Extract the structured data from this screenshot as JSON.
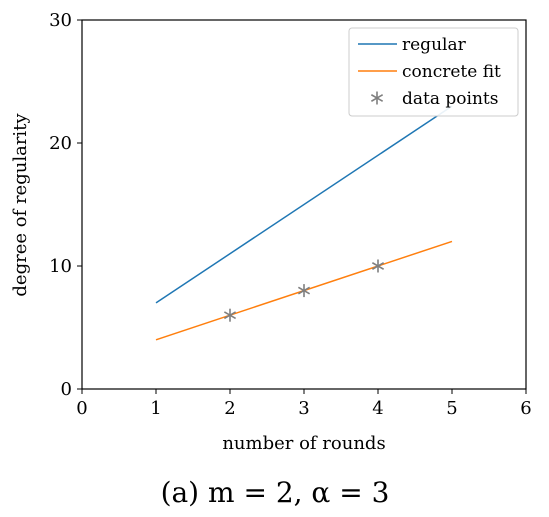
{
  "caption": "(a) m = 2, α = 3",
  "chart_data": {
    "type": "line",
    "title": "",
    "xlabel": "number of rounds",
    "ylabel": "degree of regularity",
    "xlim": [
      0,
      6
    ],
    "ylim": [
      0,
      30
    ],
    "xticks": [
      0,
      1,
      2,
      3,
      4,
      5,
      6
    ],
    "yticks": [
      0,
      10,
      20,
      30
    ],
    "grid": false,
    "legend_position": "top-right",
    "series": [
      {
        "name": "regular",
        "kind": "line",
        "color": "#1f77b4",
        "x": [
          1,
          5
        ],
        "y": [
          7,
          23
        ]
      },
      {
        "name": "concrete fit",
        "kind": "line",
        "color": "#ff7f0e",
        "x": [
          1,
          5
        ],
        "y": [
          4,
          12
        ]
      },
      {
        "name": "data points",
        "kind": "scatter",
        "marker": "asterisk",
        "color": "#7f7f7f",
        "x": [
          2,
          3,
          4
        ],
        "y": [
          6,
          8,
          10
        ]
      }
    ]
  }
}
